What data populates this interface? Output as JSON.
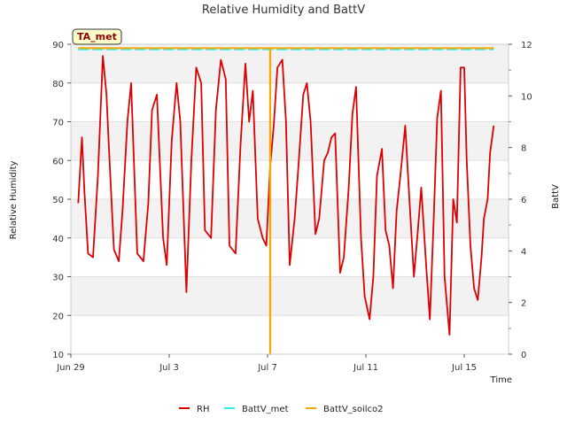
{
  "chart_data": {
    "type": "line",
    "title": "Relative Humidity and BattV",
    "xlabel": "Time",
    "ylabel_left": "Relative Humidity",
    "ylabel_right": "BattV",
    "site_badge": "TA_met",
    "xlim_days": [
      0,
      17.8
    ],
    "ylim_left": [
      10,
      90
    ],
    "ylim_right": [
      0,
      12
    ],
    "x_ticks": [
      {
        "label": "Jun 29",
        "day": 0
      },
      {
        "label": "Jul 3",
        "day": 4
      },
      {
        "label": "Jul 7",
        "day": 8
      },
      {
        "label": "Jul 11",
        "day": 12
      },
      {
        "label": "Jul 15",
        "day": 16
      }
    ],
    "y_ticks_left": [
      {
        "label": "10",
        "value": 10
      },
      {
        "label": "20",
        "value": 20
      },
      {
        "label": "30",
        "value": 30
      },
      {
        "label": "40",
        "value": 40
      },
      {
        "label": "50",
        "value": 50
      },
      {
        "label": "60",
        "value": 60
      },
      {
        "label": "70",
        "value": 70
      },
      {
        "label": "80",
        "value": 80
      },
      {
        "label": "90",
        "value": 90
      }
    ],
    "y_ticks_right": [
      {
        "label": "0",
        "value": 0
      },
      {
        "label": "2",
        "value": 2
      },
      {
        "label": "4",
        "value": 4
      },
      {
        "label": "6",
        "value": 6
      },
      {
        "label": "8",
        "value": 8
      },
      {
        "label": "10",
        "value": 10
      },
      {
        "label": "12",
        "value": 12
      }
    ],
    "series": [
      {
        "name": "RH",
        "color": "#dd0000",
        "axis": "left",
        "x_days": [
          0.3,
          0.45,
          0.55,
          0.7,
          0.9,
          1.1,
          1.3,
          1.45,
          1.55,
          1.75,
          1.95,
          2.1,
          2.3,
          2.45,
          2.7,
          2.95,
          3.15,
          3.3,
          3.5,
          3.75,
          3.9,
          4.1,
          4.3,
          4.45,
          4.7,
          4.9,
          5.1,
          5.3,
          5.45,
          5.7,
          5.9,
          6.1,
          6.3,
          6.45,
          6.7,
          6.9,
          7.1,
          7.25,
          7.4,
          7.6,
          7.8,
          7.95,
          8.1,
          8.25,
          8.4,
          8.6,
          8.75,
          8.9,
          9.1,
          9.25,
          9.45,
          9.6,
          9.75,
          9.95,
          10.1,
          10.3,
          10.45,
          10.6,
          10.75,
          10.95,
          11.1,
          11.3,
          11.45,
          11.6,
          11.8,
          11.95,
          12.15,
          12.3,
          12.45,
          12.65,
          12.8,
          12.95,
          13.1,
          13.25,
          13.4,
          13.6,
          13.75,
          13.95,
          14.1,
          14.25,
          14.45,
          14.6,
          14.75,
          14.9,
          15.05,
          15.2,
          15.4,
          15.55,
          15.7,
          15.85,
          16.0,
          16.1,
          16.25,
          16.4,
          16.55,
          16.7,
          16.8,
          16.95,
          17.05,
          17.2
        ],
        "values": [
          49,
          66,
          52,
          36,
          35,
          56,
          87,
          77,
          63,
          37,
          34,
          47,
          70,
          80,
          36,
          34,
          49,
          73,
          77,
          40,
          33,
          65,
          80,
          70,
          26,
          60,
          84,
          80,
          42,
          40,
          73,
          86,
          81,
          38,
          36,
          64,
          85,
          70,
          78,
          45,
          40,
          38,
          58,
          69,
          84,
          86,
          70,
          33,
          45,
          58,
          77,
          80,
          70,
          41,
          45,
          60,
          62,
          66,
          67,
          31,
          35,
          53,
          72,
          79,
          40,
          25,
          19,
          30,
          56,
          63,
          42,
          38,
          27,
          47,
          56,
          69,
          52,
          30,
          41,
          53,
          33,
          19,
          44,
          71,
          78,
          30,
          15,
          50,
          44,
          84,
          84,
          60,
          38,
          27,
          24,
          35,
          45,
          50,
          62,
          69
        ]
      },
      {
        "name": "BattV_met",
        "color": "#33eeee",
        "axis": "right",
        "x_days": [
          0.3,
          17.2
        ],
        "values": [
          11.8,
          11.8
        ]
      },
      {
        "name": "BattV_soilco2",
        "color": "#f5a800",
        "axis": "right",
        "x_days": [
          0.3,
          8.1,
          8.1,
          8.11,
          8.11,
          17.2
        ],
        "values": [
          11.85,
          11.85,
          0,
          0,
          11.85,
          11.85
        ]
      }
    ],
    "legend_position": "bottom-center"
  }
}
